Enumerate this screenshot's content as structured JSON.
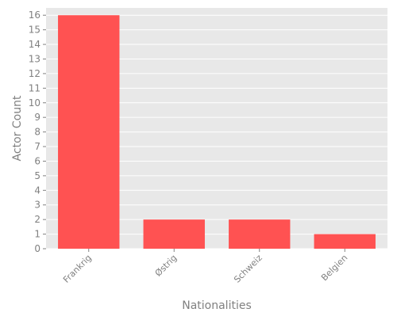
{
  "chart_data": {
    "type": "bar",
    "title": "",
    "xlabel": "Nationalities",
    "ylabel": "Actor Count",
    "categories": [
      "Frankrig",
      "Østrig",
      "Schweiz",
      "Belgien"
    ],
    "values": [
      16,
      2,
      2,
      1
    ],
    "ylim": [
      0,
      16.5
    ],
    "yticks": [
      "0",
      "1",
      "2",
      "3",
      "4",
      "5",
      "6",
      "7",
      "8",
      "9",
      "10",
      "11",
      "12",
      "13",
      "14",
      "15",
      "16"
    ],
    "grid": true,
    "colors": {
      "bar": "#ff5252",
      "panel_background": "#e8e8e8",
      "grid": "#ffffff",
      "text": "#808080"
    }
  }
}
